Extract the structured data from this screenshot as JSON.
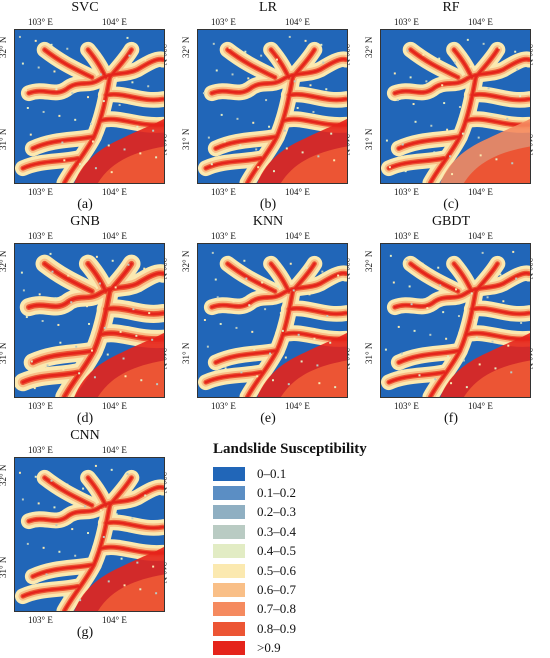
{
  "panels": [
    {
      "title": "SVC",
      "label": "(a)"
    },
    {
      "title": "LR",
      "label": "(b)"
    },
    {
      "title": "RF",
      "label": "(c)"
    },
    {
      "title": "GNB",
      "label": "(d)"
    },
    {
      "title": "KNN",
      "label": "(e)"
    },
    {
      "title": "GBDT",
      "label": "(f)"
    },
    {
      "title": "CNN",
      "label": "(g)"
    }
  ],
  "ticks": {
    "lon_left": "103° E",
    "lon_right": "104° E",
    "lat_top": "32° N",
    "lat_bottom": "31° N"
  },
  "legend": {
    "title": "Landslide Susceptibility",
    "items": [
      {
        "label": "0–0.1",
        "color": "#2166b8"
      },
      {
        "label": "0.1–0.2",
        "color": "#5b8ec4"
      },
      {
        "label": "0.2–0.3",
        "color": "#8fafc2"
      },
      {
        "label": "0.3–0.4",
        "color": "#b9cbc3"
      },
      {
        "label": "0.4–0.5",
        "color": "#e2ecc4"
      },
      {
        "label": "0.5–0.6",
        "color": "#fbe9b0"
      },
      {
        "label": "0.6–0.7",
        "color": "#f9bf87"
      },
      {
        "label": "0.7–0.8",
        "color": "#f58a5f"
      },
      {
        "label": "0.8–0.9",
        "color": "#ec5534"
      },
      {
        "label": ">0.9",
        "color": "#e5241b"
      }
    ]
  }
}
